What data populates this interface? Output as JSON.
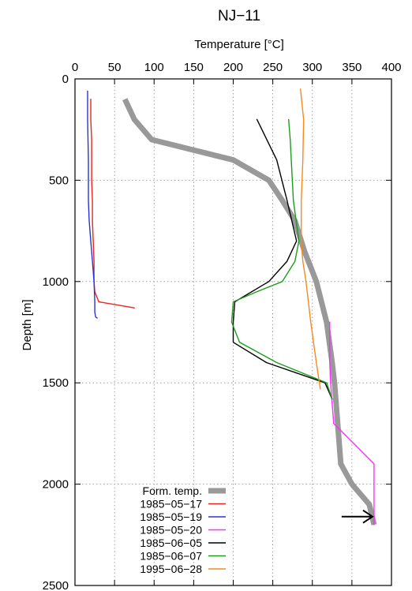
{
  "chart_data": {
    "type": "line",
    "title": "NJ−11",
    "xlabel": "Temperature [°C]",
    "ylabel": "Depth [m]",
    "x_axis_position": "top",
    "y_axis_inverted": true,
    "xlim": [
      0,
      400
    ],
    "ylim": [
      0,
      2500
    ],
    "xticks": [
      0,
      50,
      100,
      150,
      200,
      250,
      300,
      350,
      400
    ],
    "yticks": [
      0,
      500,
      1000,
      1500,
      2000,
      2500
    ],
    "grid": true,
    "legend_position": "bottom-left",
    "series": [
      {
        "name": "Form. temp.",
        "color": "#999999",
        "points": [
          [
            63,
            100
          ],
          [
            75,
            200
          ],
          [
            97,
            300
          ],
          [
            200,
            400
          ],
          [
            245,
            500
          ],
          [
            262,
            600
          ],
          [
            278,
            700
          ],
          [
            290,
            850
          ],
          [
            305,
            1000
          ],
          [
            318,
            1200
          ],
          [
            325,
            1400
          ],
          [
            328,
            1500
          ],
          [
            330,
            1600
          ],
          [
            336,
            1900
          ],
          [
            350,
            2000
          ],
          [
            372,
            2100
          ],
          [
            378,
            2200
          ]
        ]
      },
      {
        "name": "1985−05−17",
        "color": "#e8261e",
        "points": [
          [
            20,
            100
          ],
          [
            20,
            200
          ],
          [
            21,
            300
          ],
          [
            21,
            400
          ],
          [
            21,
            500
          ],
          [
            22,
            600
          ],
          [
            22,
            700
          ],
          [
            23,
            800
          ],
          [
            24,
            900
          ],
          [
            24,
            1000
          ],
          [
            25,
            1050
          ],
          [
            30,
            1100
          ],
          [
            75,
            1130
          ]
        ]
      },
      {
        "name": "1985−05−19",
        "color": "#2b33d6",
        "points": [
          [
            16,
            60
          ],
          [
            16,
            200
          ],
          [
            17,
            400
          ],
          [
            17,
            600
          ],
          [
            18,
            700
          ],
          [
            20,
            800
          ],
          [
            22,
            900
          ],
          [
            24,
            1000
          ],
          [
            25,
            1100
          ],
          [
            25,
            1150
          ],
          [
            26,
            1175
          ],
          [
            28,
            1180
          ]
        ]
      },
      {
        "name": "1985−05−20",
        "color": "#ff2bff",
        "points": [
          [
            322,
            1200
          ],
          [
            322,
            1400
          ],
          [
            323,
            1500
          ],
          [
            325,
            1600
          ],
          [
            327,
            1700
          ],
          [
            378,
            1900
          ],
          [
            378,
            2000
          ],
          [
            378,
            2200
          ]
        ]
      },
      {
        "name": "1985−06−05",
        "color": "#000000",
        "points": [
          [
            230,
            200
          ],
          [
            255,
            400
          ],
          [
            268,
            600
          ],
          [
            280,
            800
          ],
          [
            268,
            900
          ],
          [
            245,
            1000
          ],
          [
            202,
            1100
          ],
          [
            200,
            1200
          ],
          [
            200,
            1300
          ],
          [
            242,
            1400
          ],
          [
            316,
            1500
          ],
          [
            325,
            1580
          ]
        ]
      },
      {
        "name": "1985−06−07",
        "color": "#1a9e1a",
        "points": [
          [
            270,
            200
          ],
          [
            272,
            300
          ],
          [
            276,
            600
          ],
          [
            283,
            800
          ],
          [
            278,
            900
          ],
          [
            262,
            1000
          ],
          [
            230,
            1050
          ],
          [
            200,
            1100
          ],
          [
            198,
            1200
          ],
          [
            208,
            1300
          ],
          [
            255,
            1400
          ],
          [
            318,
            1500
          ],
          [
            325,
            1580
          ]
        ]
      },
      {
        "name": "1995−06−28",
        "color": "#f58a1f",
        "points": [
          [
            285,
            50
          ],
          [
            289,
            200
          ],
          [
            288,
            400
          ],
          [
            286,
            600
          ],
          [
            286,
            800
          ],
          [
            288,
            900
          ],
          [
            292,
            1000
          ],
          [
            298,
            1200
          ],
          [
            305,
            1400
          ],
          [
            310,
            1530
          ]
        ]
      }
    ],
    "annotations": [
      {
        "type": "arrow",
        "direction": "right",
        "at": [
          378,
          2160
        ],
        "from": [
          337,
          2160
        ]
      }
    ]
  }
}
